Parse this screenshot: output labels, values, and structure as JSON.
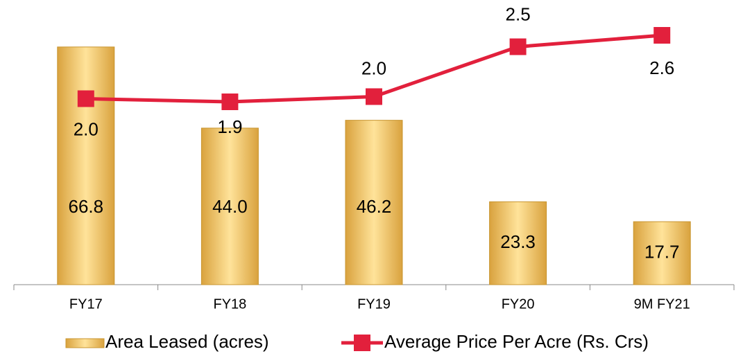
{
  "chart_data": {
    "type": "bar_line",
    "categories": [
      "FY17",
      "FY18",
      "FY19",
      "FY20",
      "9M FY21"
    ],
    "series": [
      {
        "name": "Area Leased (acres)",
        "type": "bar",
        "color": "#f4c15c",
        "values": [
          66.8,
          44.0,
          46.2,
          23.3,
          17.7
        ],
        "value_labels": [
          "66.8",
          "44.0",
          "46.2",
          "23.3",
          "17.7"
        ]
      },
      {
        "name": "Average Price Per Acre (Rs. Crs)",
        "type": "line",
        "axis": "y2",
        "color": "#e2203c",
        "values": [
          1.97,
          1.94,
          1.99,
          2.47,
          2.58
        ],
        "value_labels": [
          "2.0",
          "1.9",
          "2.0",
          "2.5",
          "2.6"
        ]
      }
    ],
    "ylim": [
      0,
      80
    ],
    "y2lim": [
      0.18,
      2.92
    ],
    "legend": "bottom"
  }
}
